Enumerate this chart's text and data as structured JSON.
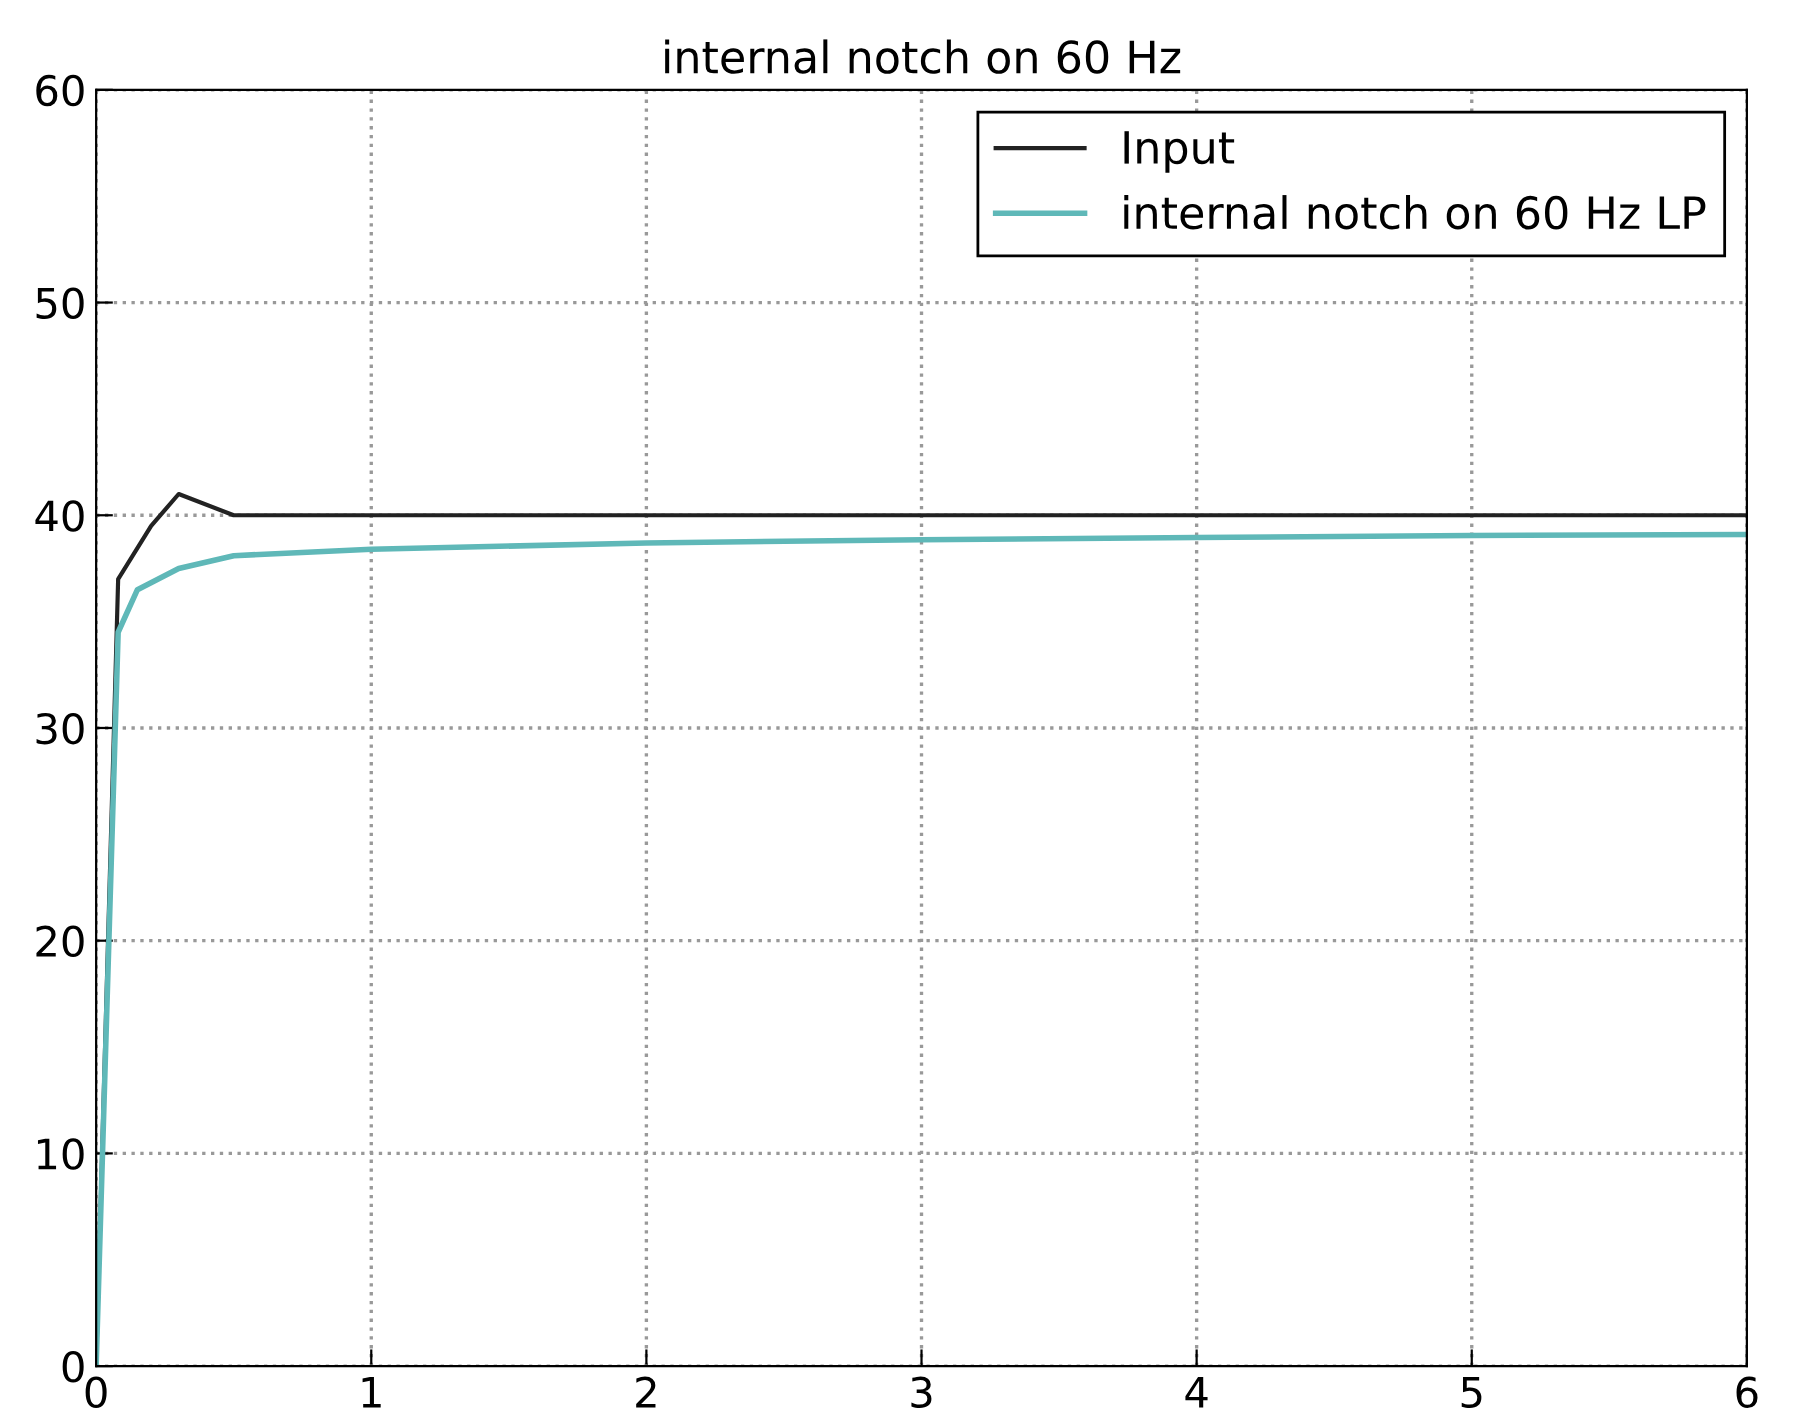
{
  "chart_data": {
    "type": "line",
    "title": "internal notch on 60 Hz",
    "xlim": [
      0,
      6
    ],
    "ylim": [
      0,
      60
    ],
    "xticks": [
      0,
      1,
      2,
      3,
      4,
      5,
      6
    ],
    "yticks": [
      0,
      10,
      20,
      30,
      40,
      50,
      60
    ],
    "grid": true,
    "legend": "top right",
    "series": [
      {
        "name": "Input",
        "color": "#222222",
        "x": [
          0,
          0.08,
          0.2,
          0.3,
          0.5,
          1,
          2,
          3,
          4,
          5,
          6
        ],
        "values": [
          0,
          37,
          39.5,
          41,
          40,
          40,
          40,
          40,
          40,
          40,
          40
        ]
      },
      {
        "name": "internal notch on 60 Hz LP",
        "color": "#5fb8b8",
        "x": [
          0,
          0.08,
          0.15,
          0.3,
          0.5,
          1,
          2,
          3,
          4,
          5,
          6
        ],
        "values": [
          0,
          34.5,
          36.5,
          37.5,
          38.1,
          38.4,
          38.7,
          38.85,
          38.95,
          39.05,
          39.1
        ]
      }
    ]
  }
}
